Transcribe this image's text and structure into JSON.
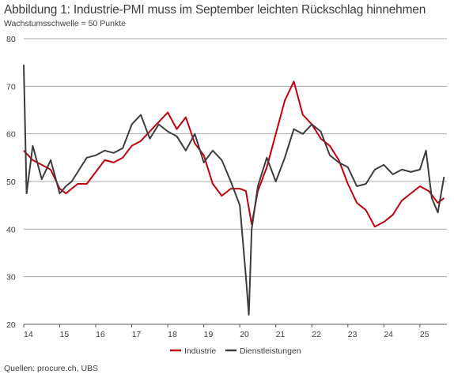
{
  "title": "Abbildung 1: Industrie-PMI muss im September leichten Rückschlag hinnehmen",
  "subtitle": "Wachstumsschwelle = 50 Punkte",
  "source": "Quellen: procure.ch, UBS",
  "chart_data": {
    "type": "line",
    "title": "Abbildung 1: Industrie-PMI muss im September leichten Rückschlag hinnehmen",
    "subtitle": "Wachstumsschwelle = 50 Punkte",
    "xlabel": "",
    "ylabel": "",
    "xlim": [
      2014,
      2025.75
    ],
    "ylim": [
      20,
      80
    ],
    "yticks": [
      20,
      30,
      40,
      50,
      60,
      70,
      80
    ],
    "xtick_labels": [
      "14",
      "15",
      "16",
      "17",
      "18",
      "19",
      "20",
      "21",
      "22",
      "23",
      "24",
      "25"
    ],
    "grid": "horizontal",
    "legend_position": "bottom-center",
    "series": [
      {
        "name": "Industrie",
        "color": "#c0000d",
        "x": [
          2014.0,
          2014.25,
          2014.5,
          2014.75,
          2015.0,
          2015.17,
          2015.33,
          2015.5,
          2015.75,
          2016.0,
          2016.25,
          2016.5,
          2016.75,
          2017.0,
          2017.25,
          2017.5,
          2017.75,
          2018.0,
          2018.25,
          2018.5,
          2018.75,
          2019.0,
          2019.25,
          2019.5,
          2019.75,
          2020.0,
          2020.17,
          2020.33,
          2020.5,
          2020.75,
          2021.0,
          2021.25,
          2021.5,
          2021.75,
          2022.0,
          2022.25,
          2022.5,
          2022.75,
          2023.0,
          2023.25,
          2023.5,
          2023.75,
          2024.0,
          2024.25,
          2024.5,
          2024.75,
          2025.0,
          2025.25,
          2025.5,
          2025.67
        ],
        "y": [
          56.5,
          54.5,
          53.5,
          52.5,
          48.5,
          47.5,
          48.5,
          49.5,
          49.5,
          52.0,
          54.5,
          54.0,
          55.0,
          57.5,
          58.5,
          60.5,
          62.5,
          64.5,
          61.0,
          63.5,
          58.0,
          55.5,
          49.5,
          47.0,
          48.5,
          48.5,
          48.0,
          41.0,
          48.0,
          53.0,
          60.0,
          67.0,
          71.0,
          64.0,
          62.0,
          59.0,
          57.5,
          54.5,
          49.5,
          45.5,
          44.0,
          40.5,
          41.5,
          43.0,
          46.0,
          47.5,
          49.0,
          48.0,
          45.5,
          46.5
        ]
      },
      {
        "name": "Dienstleistungen",
        "color": "#3c3c3c",
        "x": [
          2014.0,
          2014.08,
          2014.25,
          2014.5,
          2014.75,
          2015.0,
          2015.17,
          2015.33,
          2015.5,
          2015.75,
          2016.0,
          2016.25,
          2016.5,
          2016.75,
          2017.0,
          2017.25,
          2017.5,
          2017.75,
          2018.0,
          2018.25,
          2018.5,
          2018.75,
          2019.0,
          2019.25,
          2019.5,
          2019.75,
          2020.0,
          2020.17,
          2020.25,
          2020.33,
          2020.5,
          2020.75,
          2021.0,
          2021.25,
          2021.5,
          2021.75,
          2022.0,
          2022.25,
          2022.5,
          2022.75,
          2023.0,
          2023.25,
          2023.5,
          2023.75,
          2024.0,
          2024.25,
          2024.5,
          2024.75,
          2025.0,
          2025.17,
          2025.33,
          2025.5,
          2025.67
        ],
        "y": [
          74.5,
          47.5,
          57.5,
          50.5,
          54.5,
          47.5,
          49.0,
          50.0,
          52.0,
          55.0,
          55.5,
          56.5,
          56.0,
          57.0,
          62.0,
          64.0,
          59.0,
          62.0,
          60.5,
          59.5,
          56.5,
          60.0,
          54.0,
          56.5,
          54.5,
          50.0,
          45.0,
          30.0,
          22.0,
          40.0,
          49.0,
          55.0,
          50.0,
          55.0,
          61.0,
          60.0,
          62.0,
          60.5,
          55.5,
          54.0,
          53.0,
          49.0,
          49.5,
          52.5,
          53.5,
          51.5,
          52.5,
          52.0,
          52.5,
          56.5,
          46.5,
          43.5,
          51.0
        ]
      }
    ]
  }
}
